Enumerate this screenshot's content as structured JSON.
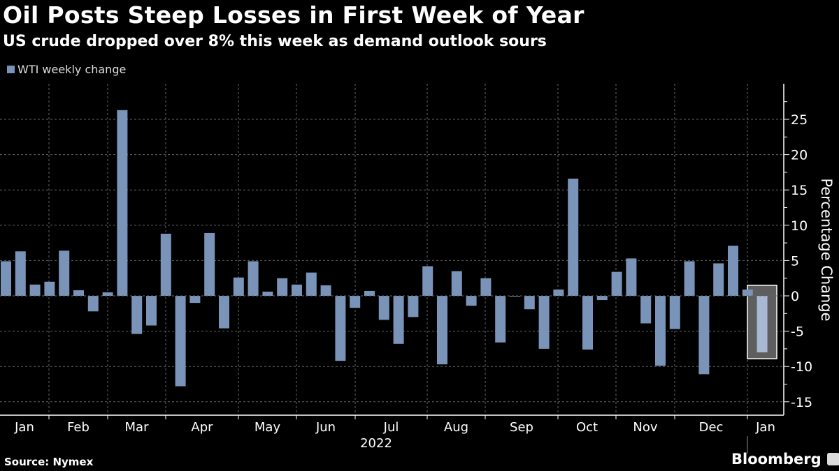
{
  "title": "Oil Posts Steep Losses in First Week of Year",
  "subtitle": "US crude dropped over 8% this week as demand outlook sours",
  "source": "Source: Nymex",
  "brand": "Bloomberg",
  "colors": {
    "bar": "#7a93b8",
    "highlight_bar": "#a9b9d3",
    "highlight_box": "#5e5e5e",
    "background": "#000000"
  },
  "chart_data": {
    "type": "bar",
    "legend": [
      "WTI weekly change"
    ],
    "legend_placement": "top-left",
    "ylabel": "Percentage Change",
    "ylim": [
      -16.5,
      29
    ],
    "yticks": [
      -15,
      -10,
      -5,
      0,
      5,
      10,
      15,
      20,
      25
    ],
    "grid": true,
    "month_labels": [
      "Jan",
      "Feb",
      "Mar",
      "Apr",
      "May",
      "Jun",
      "Jul",
      "Aug",
      "Sep",
      "Oct",
      "Nov",
      "Dec",
      "Jan"
    ],
    "year_label": "2022",
    "series": [
      {
        "name": "WTI weekly change",
        "values": [
          4.9,
          6.3,
          1.6,
          2.0,
          6.4,
          0.8,
          -2.2,
          0.5,
          26.3,
          -5.4,
          -4.2,
          8.8,
          -12.8,
          -1.0,
          8.9,
          -4.6,
          2.6,
          4.9,
          0.6,
          2.5,
          1.6,
          3.3,
          1.5,
          -9.2,
          -1.7,
          0.7,
          -3.4,
          -6.8,
          -3.0,
          4.2,
          -9.7,
          3.5,
          -1.4,
          2.5,
          -6.6,
          -0.1,
          -1.9,
          -7.5,
          0.9,
          16.6,
          -7.6,
          -0.6,
          3.4,
          5.3,
          -3.9,
          -9.9,
          -4.7,
          4.9,
          -11.1,
          4.6,
          7.1,
          0.9,
          -8.0
        ]
      }
    ],
    "highlighted_index": 52
  }
}
